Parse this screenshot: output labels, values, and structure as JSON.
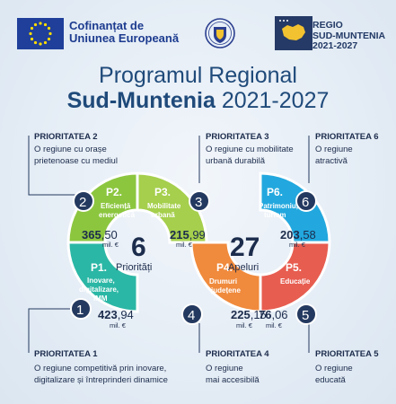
{
  "header": {
    "eu_line1": "Cofinanțat de",
    "eu_line2": "Uniunea Europeană",
    "regio_line1": "REGIO",
    "regio_line2": "SUD-MUNTENIA",
    "regio_line3": "2021-2027"
  },
  "title": {
    "line1": "Programul Regional",
    "line2_bold": "Sud-Muntenia",
    "line2_rest": " 2021-2027"
  },
  "center": {
    "priorities_count": "6",
    "priorities_label": "Priorități",
    "calls_count": "27",
    "calls_label": "Apeluri"
  },
  "colors": {
    "p1": "#2bb7a5",
    "p2": "#8cc63f",
    "p3": "#a5cf4c",
    "p4": "#f08a3c",
    "p5": "#e75d50",
    "p6": "#22a8de",
    "badge": "#24395f"
  },
  "segments": {
    "p1": {
      "code": "P1.",
      "label1": "Inovare,",
      "label2": "digitalizare,",
      "label3": "IMM",
      "amount_int": "423",
      "amount_dec": ",94",
      "unit": "mil. €",
      "badge": "1"
    },
    "p2": {
      "code": "P2.",
      "label1": "Eficiență",
      "label2": "energetică",
      "amount_int": "365",
      "amount_dec": ",50",
      "unit": "mil. €",
      "badge": "2"
    },
    "p3": {
      "code": "P3.",
      "label1": "Mobilitate",
      "label2": "urbană",
      "amount_int": "215",
      "amount_dec": ",99",
      "unit": "mil. €",
      "badge": "3"
    },
    "p4": {
      "code": "P4.",
      "label1": "Drumuri",
      "label2": "județene",
      "amount_int": "225",
      "amount_dec": ",15",
      "unit": "mil. €",
      "badge": "4"
    },
    "p5": {
      "code": "P5.",
      "label1": "Educație",
      "amount_int": "76",
      "amount_dec": ",06",
      "unit": "mil. €",
      "badge": "5"
    },
    "p6": {
      "code": "P6.",
      "label1": "Patrimoniu,",
      "label2": "turism",
      "amount_int": "203",
      "amount_dec": ",58",
      "unit": "mil. €",
      "badge": "6"
    }
  },
  "callouts": {
    "c2": {
      "head": "PRIORITATEA 2",
      "line1": "O regiune cu orașe",
      "line2": "prietenoase cu mediul"
    },
    "c3": {
      "head": "PRIORITATEA 3",
      "line1": "O regiune cu mobilitate",
      "line2": "urbană durabilă"
    },
    "c6": {
      "head": "PRIORITATEA 6",
      "line1": "O regiune",
      "line2": "atractivă"
    },
    "c1": {
      "head": "PRIORITATEA 1",
      "line1": "O regiune competitivă prin inovare,",
      "line2": "digitalizare și întreprinderi dinamice"
    },
    "c4": {
      "head": "PRIORITATEA 4",
      "line1": "O regiune",
      "line2": "mai accesibilă"
    },
    "c5": {
      "head": "PRIORITATEA 5",
      "line1": "O regiune",
      "line2": "educată"
    }
  }
}
